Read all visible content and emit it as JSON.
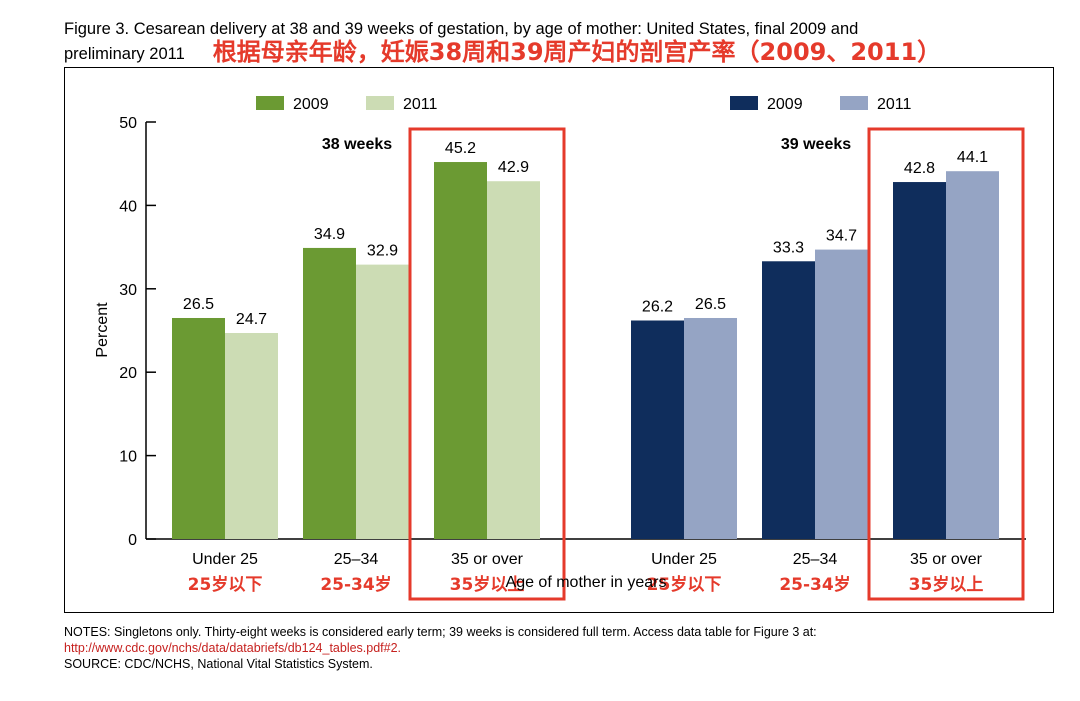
{
  "title": {
    "line1": "Figure 3. Cesarean delivery at 38 and 39 weeks of gestation, by age of mother: United States, final 2009 and",
    "line2": "preliminary 2011",
    "chinese": "根据母亲年龄，妊娠38周和39周产妇的剖宫产率（2009、2011）"
  },
  "chart_data": [
    {
      "type": "bar",
      "title": "38 weeks",
      "categories": [
        "Under 25",
        "25–34",
        "35 or over"
      ],
      "categories_cn": [
        "25岁以下",
        "25-34岁",
        "35岁以上"
      ],
      "series": [
        {
          "name": "2009",
          "color": "#6b9a33",
          "values": [
            26.5,
            34.9,
            45.2
          ]
        },
        {
          "name": "2011",
          "color": "#ccdcb4",
          "values": [
            24.7,
            32.9,
            42.9
          ]
        }
      ],
      "ylabel": "Percent",
      "ylim": [
        0,
        50
      ],
      "yticks": [
        0,
        10,
        20,
        30,
        40,
        50
      ],
      "highlight_category": "35 or over"
    },
    {
      "type": "bar",
      "title": "39 weeks",
      "categories": [
        "Under 25",
        "25–34",
        "35 or over"
      ],
      "categories_cn": [
        "25岁以下",
        "25-34岁",
        "35岁以上"
      ],
      "series": [
        {
          "name": "2009",
          "color": "#0f2d5c",
          "values": [
            26.2,
            33.3,
            42.8
          ]
        },
        {
          "name": "2011",
          "color": "#95a4c4",
          "values": [
            26.5,
            34.7,
            44.1
          ]
        }
      ],
      "ylim": [
        0,
        50
      ],
      "highlight_category": "35 or over"
    }
  ],
  "xlabel": "Age of mother in years",
  "highlight_color": "#e53a2b",
  "notes": {
    "line1": "NOTES: Singletons only. Thirty-eight weeks is considered early term; 39 weeks is considered full term. Access data table for Figure 3 at:",
    "link": "http://www.cdc.gov/nchs/data/databriefs/db124_tables.pdf#2.",
    "source": "SOURCE: CDC/NCHS, National Vital Statistics System."
  }
}
